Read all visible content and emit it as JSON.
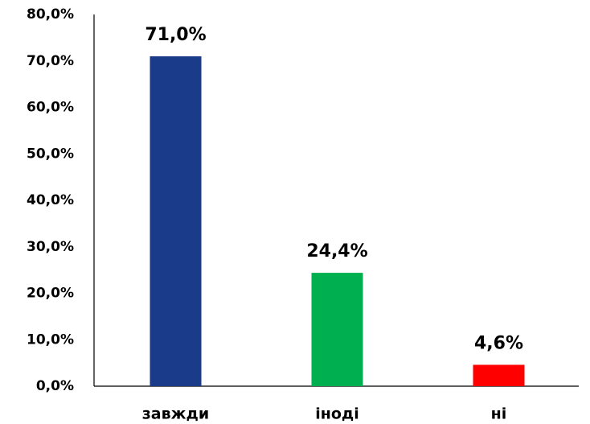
{
  "chart_data": {
    "type": "bar",
    "categories": [
      "завжди",
      "іноді",
      "ні"
    ],
    "values": [
      71.0,
      24.4,
      4.6
    ],
    "value_labels": [
      "71,0%",
      "24,4%",
      "4,6%"
    ],
    "colors": [
      "#1a3a8a",
      "#00b050",
      "#ff0000"
    ],
    "ylim": [
      0,
      80
    ],
    "yticks": [
      {
        "value": 0,
        "label": "0,0%"
      },
      {
        "value": 10,
        "label": "10,0%"
      },
      {
        "value": 20,
        "label": "20,0%"
      },
      {
        "value": 30,
        "label": "30,0%"
      },
      {
        "value": 40,
        "label": "40,0%"
      },
      {
        "value": 50,
        "label": "50,0%"
      },
      {
        "value": 60,
        "label": "60,0%"
      },
      {
        "value": 70,
        "label": "70,0%"
      },
      {
        "value": 80,
        "label": "80,0%"
      }
    ],
    "grid": false
  }
}
